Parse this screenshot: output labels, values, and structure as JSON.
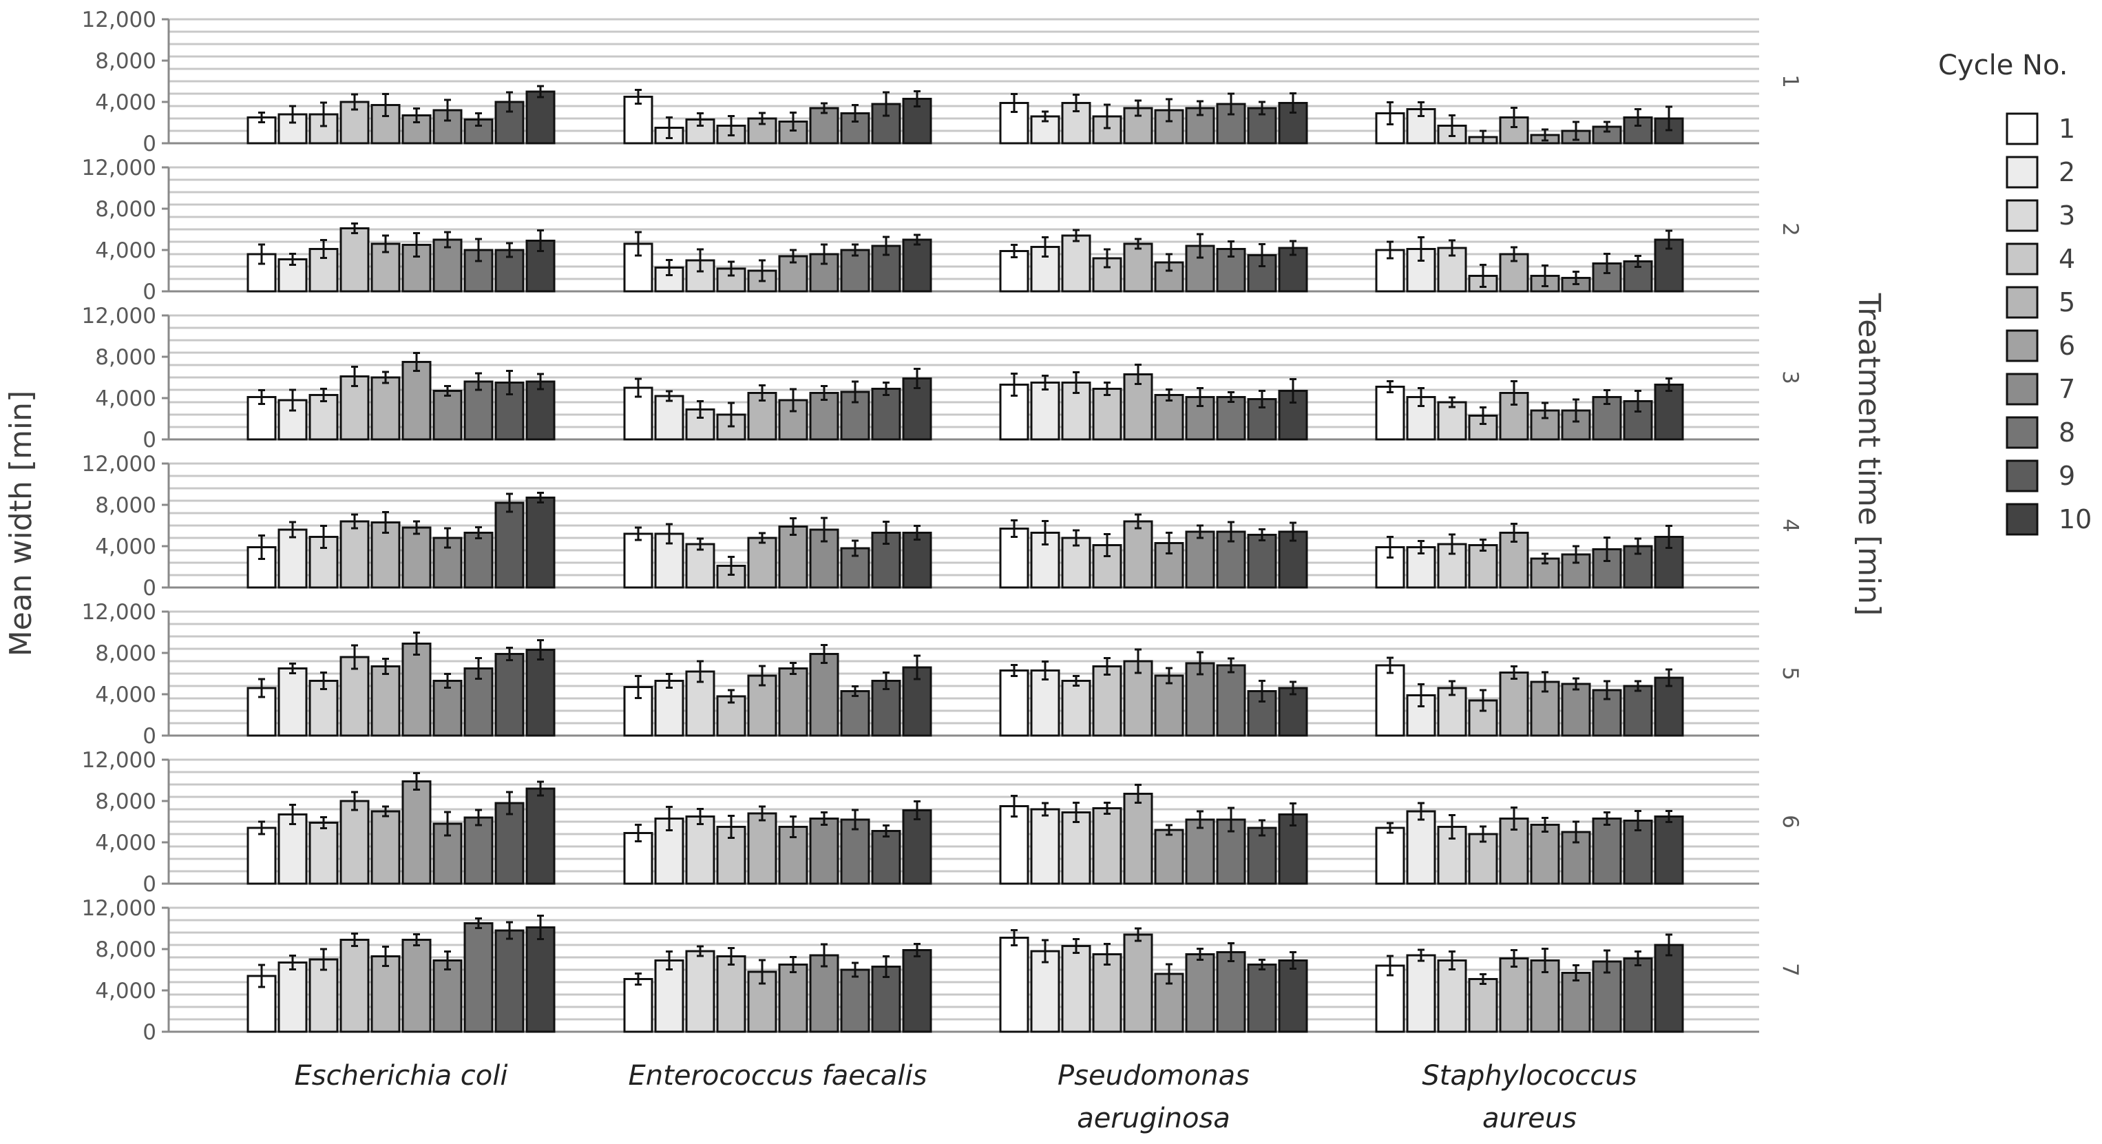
{
  "chart_data": {
    "type": "bar",
    "ylabel": "Mean width [min]",
    "row_axis_label": "Treatment time [min]",
    "legend_title": "Cycle No.",
    "categories": [
      "Escherichia coli",
      "Enterococcus faecalis",
      "Pseudomonas aeruginosa",
      "Staphylococcus aureus"
    ],
    "category_display": [
      [
        "Escherichia coli"
      ],
      [
        "Enterococcus faecalis"
      ],
      [
        "Pseudomonas",
        "aeruginosa"
      ],
      [
        "Staphylococcus",
        "aureus"
      ]
    ],
    "cycles": [
      "1",
      "2",
      "3",
      "4",
      "5",
      "6",
      "7",
      "8",
      "9",
      "10"
    ],
    "cycle_colors": [
      "#ffffff",
      "#ececec",
      "#dadada",
      "#c8c8c8",
      "#b6b6b6",
      "#a2a2a2",
      "#8c8c8c",
      "#757575",
      "#5c5c5c",
      "#434343"
    ],
    "ylim": [
      0,
      12000
    ],
    "yticks": [
      0,
      4000,
      8000,
      12000
    ],
    "ytick_labels": [
      "0",
      "4,000",
      "8,000",
      "12,000"
    ],
    "grid": true,
    "legend_position": "right",
    "panels": [
      {
        "treatment_time": "1",
        "values": [
          [
            2500,
            2800,
            2800,
            4000,
            3700,
            2700,
            3200,
            2300,
            4000,
            5000
          ],
          [
            4500,
            1500,
            2300,
            1700,
            2400,
            2100,
            3400,
            2900,
            3800,
            4300
          ],
          [
            3900,
            2600,
            3900,
            2600,
            3400,
            3200,
            3400,
            3800,
            3400,
            3900
          ],
          [
            2900,
            3300,
            1700,
            600,
            2500,
            800,
            1200,
            1600,
            2500,
            2400
          ]
        ]
      },
      {
        "treatment_time": "2",
        "values": [
          [
            3600,
            3100,
            4100,
            6100,
            4600,
            4500,
            5000,
            4000,
            4000,
            4900
          ],
          [
            4600,
            2300,
            3000,
            2200,
            2000,
            3400,
            3600,
            4000,
            4400,
            5000
          ],
          [
            3900,
            4300,
            5400,
            3200,
            4600,
            2800,
            4400,
            4100,
            3500,
            4200
          ],
          [
            4000,
            4100,
            4200,
            1500,
            3600,
            1500,
            1300,
            2700,
            2900,
            5000
          ]
        ]
      },
      {
        "treatment_time": "3",
        "values": [
          [
            4100,
            3800,
            4300,
            6100,
            6000,
            7500,
            4700,
            5600,
            5500,
            5600
          ],
          [
            5000,
            4200,
            2900,
            2400,
            4500,
            3800,
            4500,
            4600,
            4900,
            5900
          ],
          [
            5300,
            5500,
            5500,
            4900,
            6300,
            4300,
            4100,
            4100,
            3900,
            4700
          ],
          [
            5100,
            4100,
            3600,
            2300,
            4500,
            2800,
            2800,
            4100,
            3700,
            5300
          ]
        ]
      },
      {
        "treatment_time": "4",
        "values": [
          [
            3900,
            5600,
            4900,
            6400,
            6300,
            5800,
            4800,
            5300,
            8200,
            8700
          ],
          [
            5200,
            5200,
            4200,
            2100,
            4800,
            5900,
            5600,
            3800,
            5300,
            5300
          ],
          [
            5700,
            5300,
            4800,
            4100,
            6400,
            4300,
            5400,
            5400,
            5100,
            5400
          ],
          [
            3900,
            3900,
            4200,
            4100,
            5300,
            2800,
            3200,
            3700,
            4000,
            4900
          ]
        ]
      },
      {
        "treatment_time": "5",
        "values": [
          [
            4600,
            6500,
            5300,
            7600,
            6700,
            8900,
            5300,
            6500,
            7900,
            8300
          ],
          [
            4700,
            5300,
            6200,
            3800,
            5800,
            6500,
            7900,
            4300,
            5300,
            6600
          ],
          [
            6300,
            6300,
            5300,
            6700,
            7200,
            5800,
            7000,
            6800,
            4300,
            4600
          ],
          [
            6800,
            3900,
            4600,
            3400,
            6100,
            5200,
            5000,
            4400,
            4800,
            5600
          ]
        ]
      },
      {
        "treatment_time": "6",
        "values": [
          [
            5400,
            6700,
            5900,
            8000,
            7000,
            9900,
            5800,
            6400,
            7800,
            9200
          ],
          [
            4900,
            6300,
            6500,
            5500,
            6800,
            5500,
            6300,
            6200,
            5100,
            7100
          ],
          [
            7500,
            7200,
            6900,
            7300,
            8700,
            5200,
            6200,
            6200,
            5400,
            6700
          ],
          [
            5400,
            7000,
            5500,
            4800,
            6300,
            5700,
            5000,
            6300,
            6100,
            6500
          ]
        ]
      },
      {
        "treatment_time": "7",
        "values": [
          [
            5400,
            6700,
            7000,
            8900,
            7300,
            8900,
            6900,
            10500,
            9800,
            10100
          ],
          [
            5100,
            6900,
            7800,
            7300,
            5800,
            6500,
            7400,
            6000,
            6300,
            7900
          ],
          [
            9100,
            7800,
            8300,
            7500,
            9400,
            5600,
            7500,
            7700,
            6500,
            6900
          ],
          [
            6400,
            7400,
            6900,
            5100,
            7100,
            6900,
            5700,
            6800,
            7100,
            8400
          ]
        ]
      }
    ]
  }
}
